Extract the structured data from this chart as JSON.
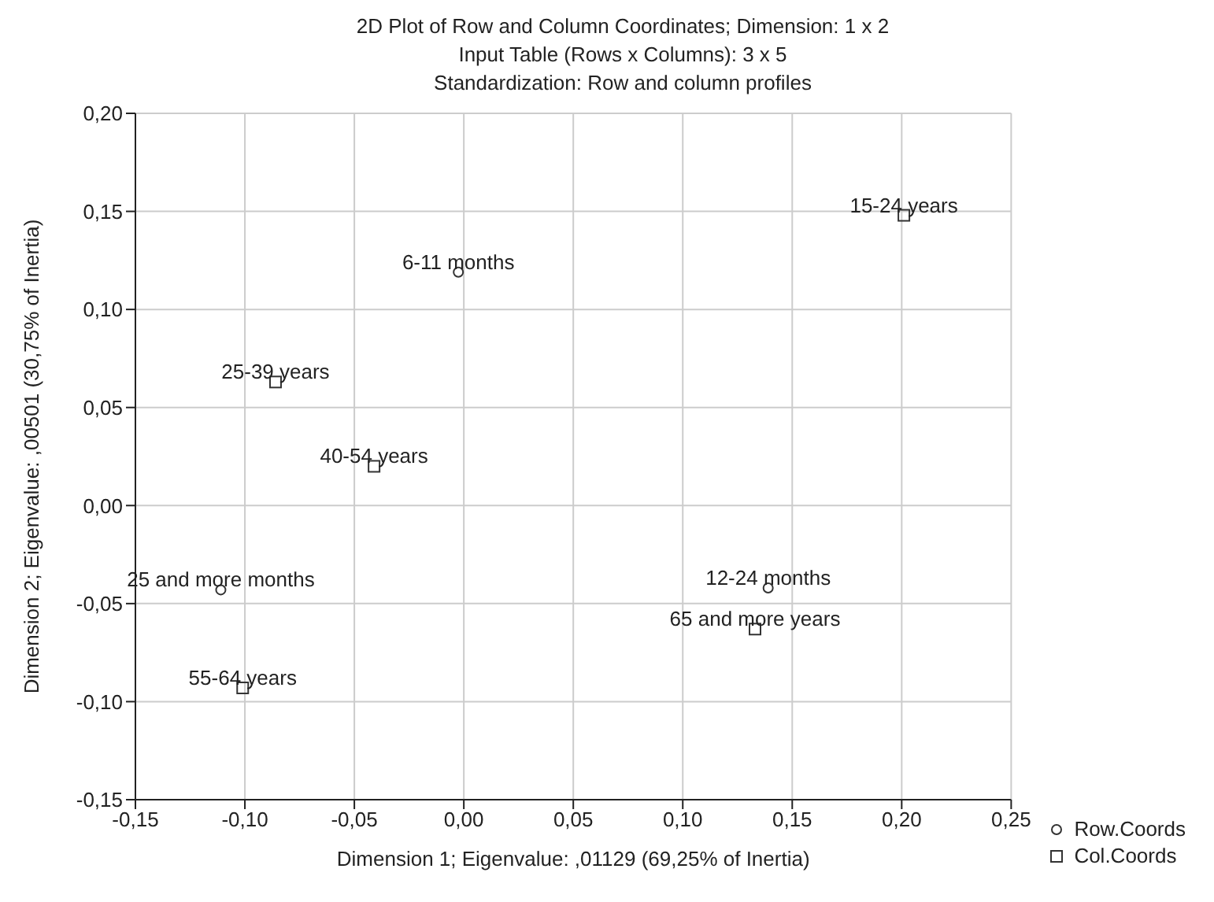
{
  "chart_data": {
    "type": "scatter",
    "title": "2D Plot of Row and Column Coordinates; Dimension:  1 x  2",
    "subtitle": "Input Table (Rows x Columns): 3 x 5\nStandardization: Row and column profiles",
    "xlabel": "Dimension 1; Eigenvalue: ,01129 (69,25% of Inertia)",
    "ylabel": "Dimension 2; Eigenvalue: ,00501 (30,75% of Inertia)",
    "series": [
      {
        "name": "Row.Coords",
        "color": "#333333",
        "marker": "circle",
        "x": [
          -0.0025,
          0.139,
          -0.111
        ],
        "values": [
          0.119,
          -0.042,
          -0.043
        ]
      },
      {
        "name": "Col.Coords",
        "color": "#333333",
        "marker": "square",
        "x": [
          0.201,
          -0.086,
          -0.041,
          -0.101,
          0.133
        ],
        "values": [
          0.148,
          0.063,
          0.02,
          -0.093,
          -0.063
        ]
      }
    ],
    "annotations": [
      {
        "text": "6-11 months",
        "x": -0.0025,
        "y": 0.119
      },
      {
        "text": "12-24 months",
        "x": 0.139,
        "y": -0.042
      },
      {
        "text": "25 and more months",
        "x": -0.111,
        "y": -0.043
      },
      {
        "text": "15-24 years",
        "x": 0.201,
        "y": 0.148
      },
      {
        "text": "25-39 years",
        "x": -0.086,
        "y": 0.063
      },
      {
        "text": "40-54 years",
        "x": -0.041,
        "y": 0.02
      },
      {
        "text": "55-64 years",
        "x": -0.101,
        "y": -0.093
      },
      {
        "text": "65 and more years",
        "x": 0.133,
        "y": -0.063
      }
    ],
    "xlim": [
      -0.15,
      0.25
    ],
    "xticks": [
      {
        "value": -0.15,
        "label": "-0,15"
      },
      {
        "value": -0.1,
        "label": "-0,10"
      },
      {
        "value": -0.05,
        "label": "-0,05"
      },
      {
        "value": 0,
        "label": "0,00"
      },
      {
        "value": 0.05,
        "label": "0,05"
      },
      {
        "value": 0.1,
        "label": "0,10"
      },
      {
        "value": 0.15,
        "label": "0,15"
      },
      {
        "value": 0.2,
        "label": "0,20"
      },
      {
        "value": 0.25,
        "label": "0,25"
      }
    ],
    "ylim": [
      -0.15,
      0.2
    ],
    "yticks": [
      {
        "value": -0.15,
        "label": "-0,15"
      },
      {
        "value": -0.1,
        "label": "-0,10"
      },
      {
        "value": -0.05,
        "label": "-0,05"
      },
      {
        "value": 0,
        "label": "0,00"
      },
      {
        "value": 0.05,
        "label": "0,05"
      },
      {
        "value": 0.1,
        "label": "0,10"
      },
      {
        "value": 0.15,
        "label": "0,15"
      },
      {
        "value": 0.2,
        "label": "0,20"
      }
    ],
    "grid": true,
    "legend": "bottom right"
  }
}
